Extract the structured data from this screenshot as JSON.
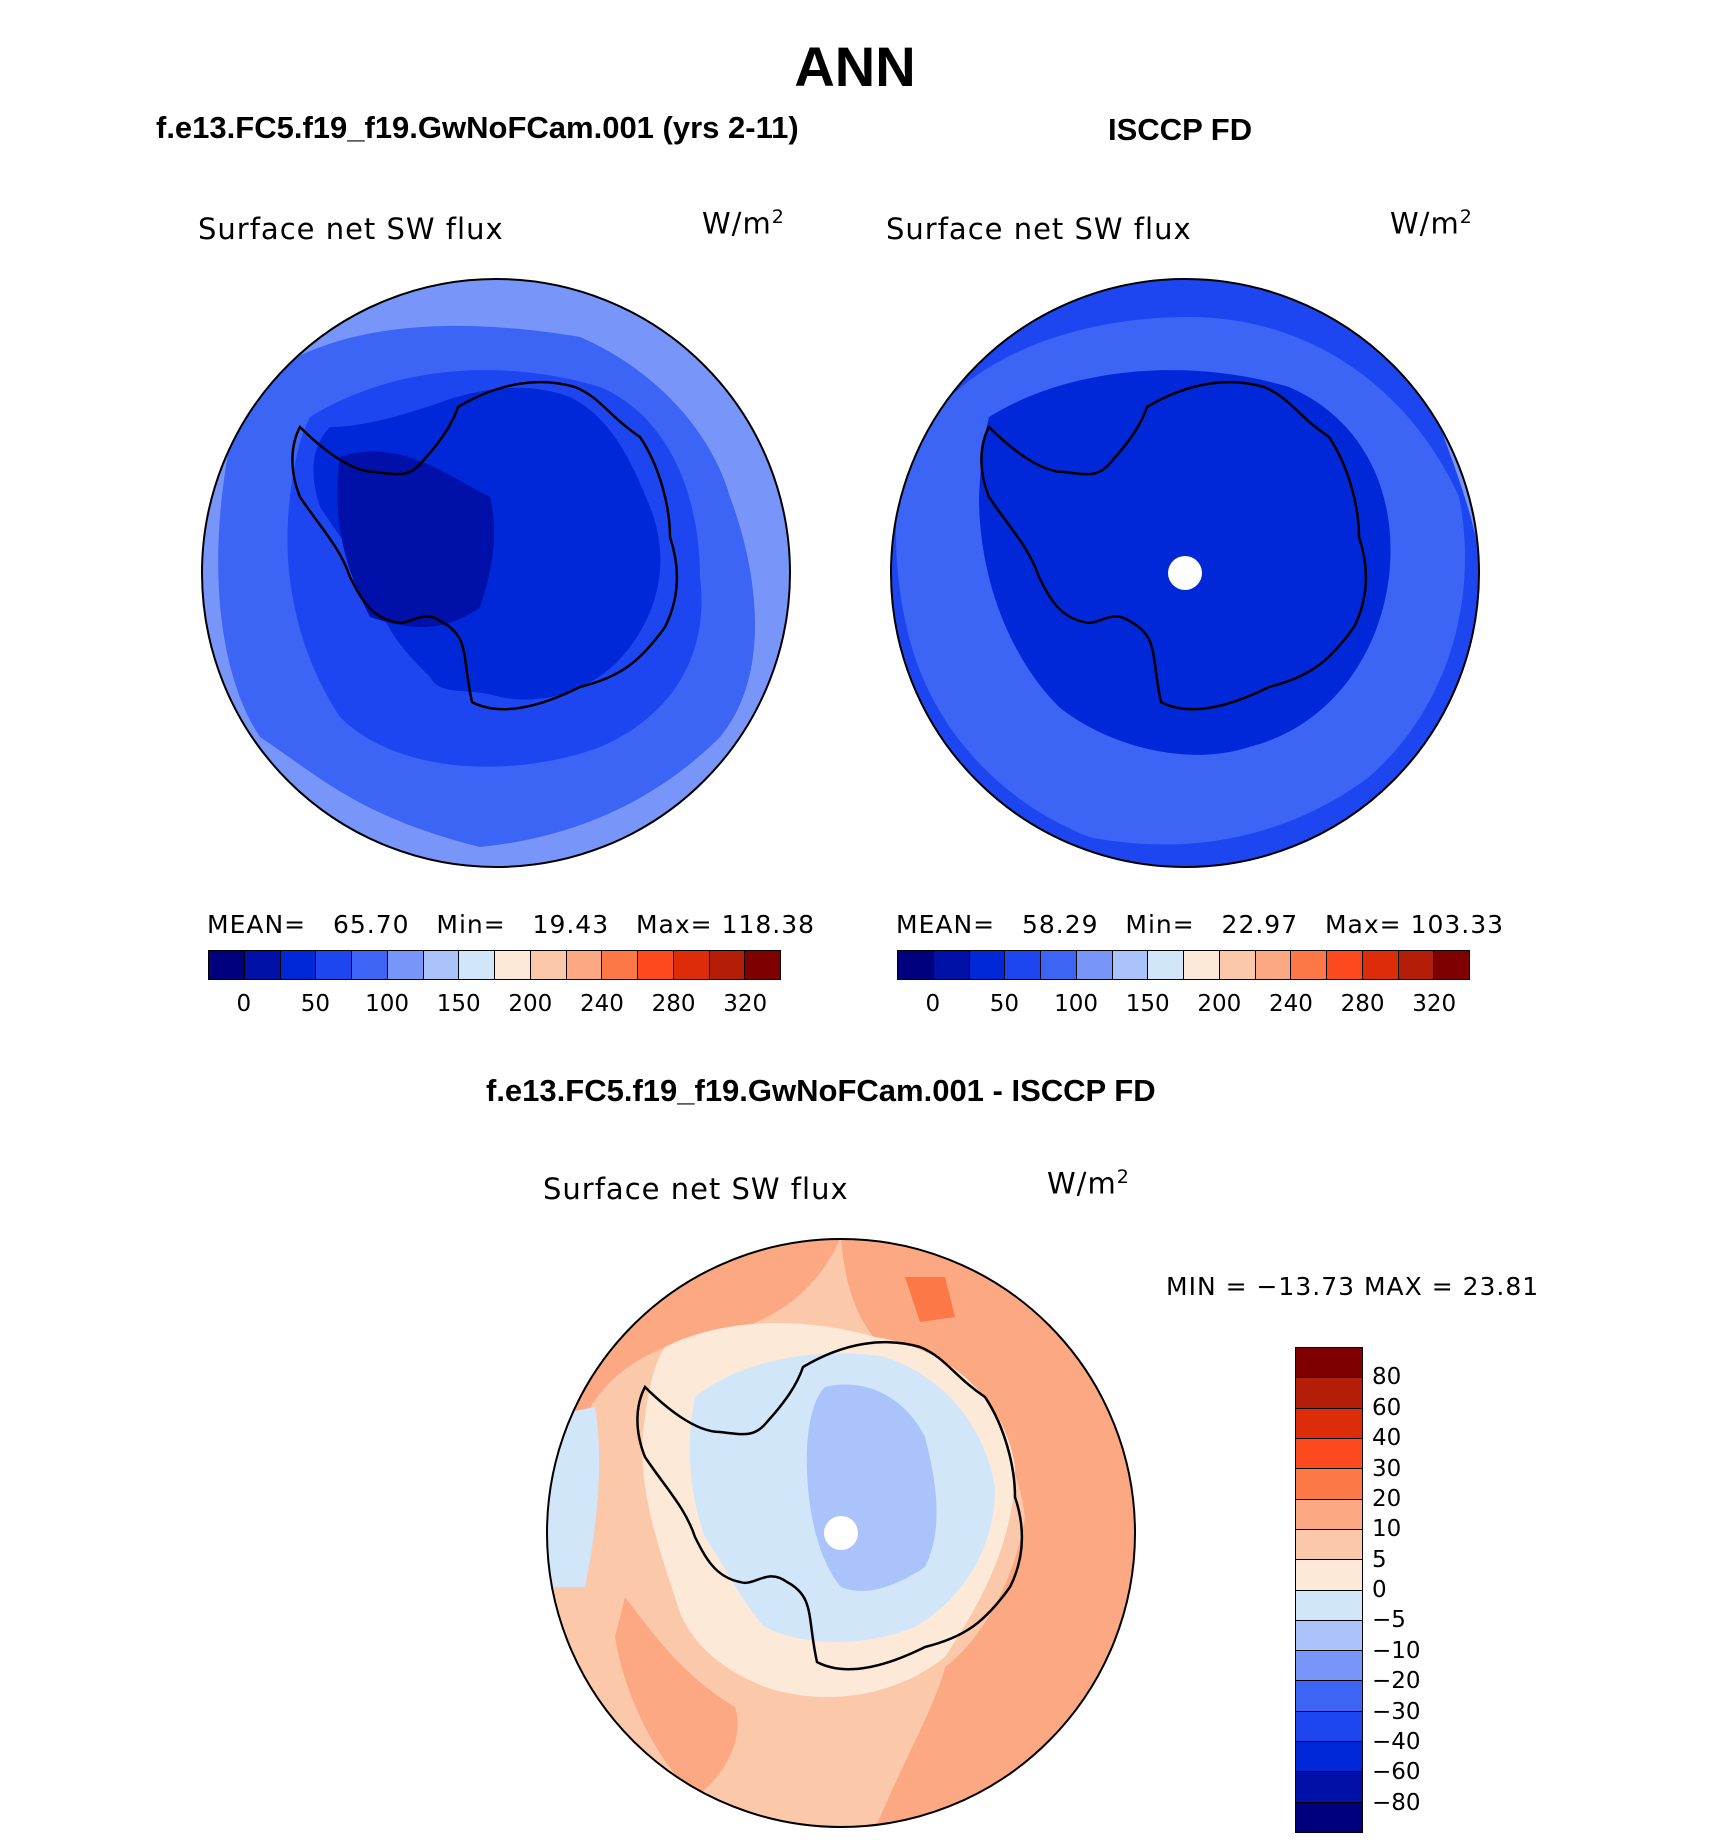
{
  "title": "ANN",
  "panels": [
    {
      "heading": "f.e13.FC5.f19_f19.GwNoFCam.001 (yrs 2-11)",
      "variable": "Surface net SW flux",
      "units_base": "W/m",
      "units_sup": "2",
      "mean_label": "MEAN=",
      "mean": "65.70",
      "min_label": "Min=",
      "min": "19.43",
      "max_label": "Max=",
      "max": "118.38"
    },
    {
      "heading": "ISCCP FD",
      "variable": "Surface net SW flux",
      "units_base": "W/m",
      "units_sup": "2",
      "mean_label": "MEAN=",
      "mean": "58.29",
      "min_label": "Min=",
      "min": "22.97",
      "max_label": "Max=",
      "max": "103.33"
    }
  ],
  "diff": {
    "heading": "f.e13.FC5.f19_f19.GwNoFCam.001 - ISCCP FD",
    "variable": "Surface net SW flux",
    "units_base": "W/m",
    "units_sup": "2",
    "minmax": "MIN = −13.73 MAX =  23.81"
  },
  "abs_colorbar": {
    "ticks": [
      "0",
      "50",
      "100",
      "150",
      "200",
      "240",
      "280",
      "320"
    ],
    "colors": [
      "#00007f",
      "#0010a8",
      "#0028d8",
      "#1e46f0",
      "#3c64f5",
      "#7896fa",
      "#aac3fa",
      "#d2e6fa",
      "#fde9d8",
      "#fcc8aa",
      "#fca882",
      "#fc7846",
      "#fc4a1e",
      "#dc2c0a",
      "#b41e08",
      "#7f0000"
    ]
  },
  "diff_colorbar": {
    "ticks": [
      "80",
      "60",
      "40",
      "30",
      "20",
      "10",
      "5",
      "0",
      "−5",
      "−10",
      "−20",
      "−30",
      "−40",
      "−60",
      "−80"
    ],
    "colors": [
      "#7f0000",
      "#b41e08",
      "#dc2c0a",
      "#fc4a1e",
      "#fc7846",
      "#fca882",
      "#fcc8aa",
      "#fde9d8",
      "#d2e6fa",
      "#aac3fa",
      "#7896fa",
      "#3c64f5",
      "#1e46f0",
      "#0028d8",
      "#0010a8",
      "#00007f"
    ]
  },
  "map_colors": {
    "ocean_light": "#7896fa",
    "ocean_mid": "#3c64f5",
    "ocean_blue": "#1e46f0",
    "land_dark": "#0028d8",
    "land_darkest": "#0010a8",
    "diff_base": "#fcc8aa",
    "diff_orange": "#fca882",
    "diff_red": "#fc7846",
    "diff_pale": "#fde9d8",
    "diff_light_blue": "#d2e6fa",
    "diff_blue": "#aac3fa",
    "diff_mid_blue": "#7896fa"
  }
}
